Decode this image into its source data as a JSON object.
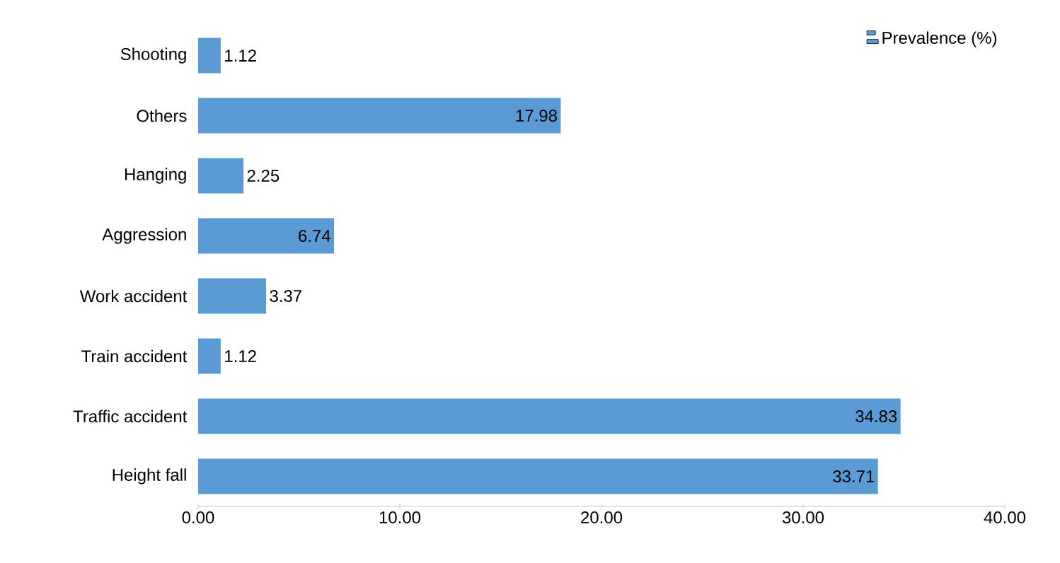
{
  "chart_data": {
    "type": "bar",
    "orientation": "horizontal",
    "categories": [
      "Shooting",
      "Others",
      "Hanging",
      "Aggression",
      "Work accident",
      "Train accident",
      "Traffic accident",
      "Height fall"
    ],
    "series": [
      {
        "name": "Prevalence (%)",
        "color": "#5b9bd5",
        "values": [
          1.12,
          17.98,
          2.25,
          6.74,
          3.37,
          1.12,
          34.83,
          33.71
        ]
      }
    ],
    "xlim": [
      0,
      40
    ],
    "xticks": [
      {
        "value": 0,
        "label": "0.00"
      },
      {
        "value": 10,
        "label": "10.00"
      },
      {
        "value": 20,
        "label": "20.00"
      },
      {
        "value": 30,
        "label": "30.00"
      },
      {
        "value": 40,
        "label": "40.00"
      }
    ],
    "data_labels": true,
    "legend": "top right",
    "grid": false
  }
}
